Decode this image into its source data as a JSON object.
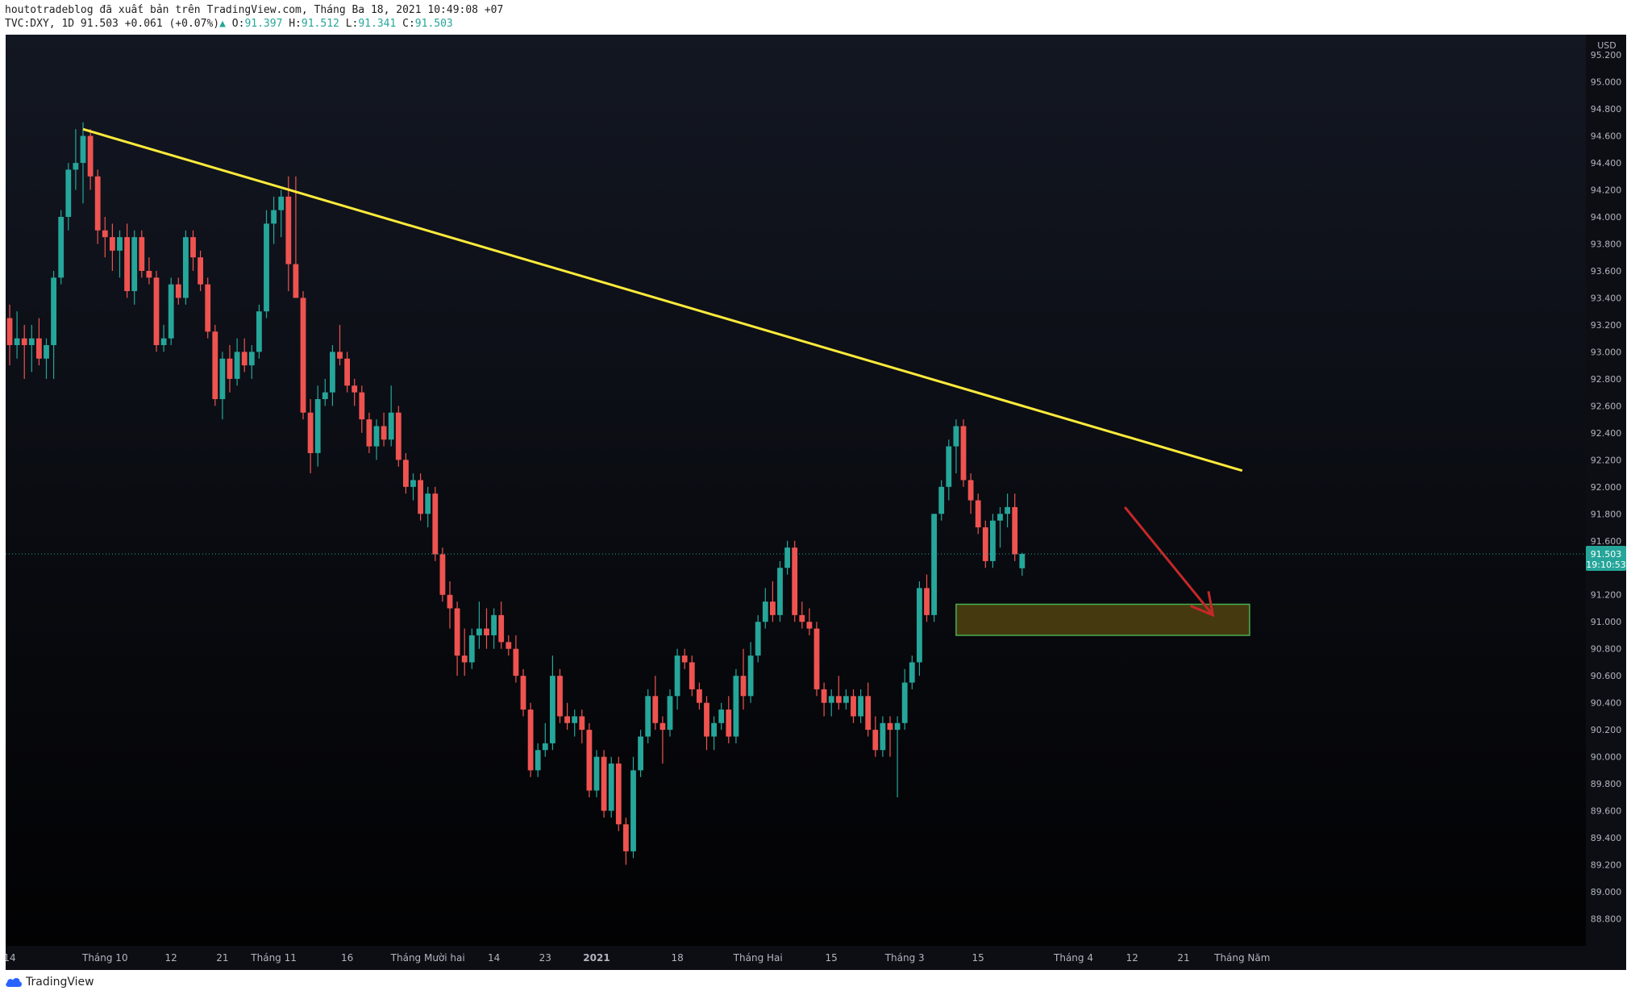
{
  "header": {
    "publisher_line": "houtotradeblog đã xuất bản trên TradingView.com, Tháng Ba 18, 2021 10:49:08 +07",
    "symbol": "TVC:DXY, 1D",
    "last": "91.503",
    "arrow": "▲",
    "change": "+0.061 (+0.07%)",
    "o_label": "O:",
    "o": "91.397",
    "h_label": "H:",
    "h": "91.512",
    "l_label": "L:",
    "l": "91.341",
    "c_label": "C:",
    "c": "91.503"
  },
  "footer": {
    "brand": "TradingView"
  },
  "colors": {
    "bg_top": "#131722",
    "bg_bottom": "#000000",
    "up": "#26a69a",
    "down": "#ef5350",
    "trendline": "#ffeb3b",
    "zone_stroke": "#4caf50",
    "zone_fill": "#5a4a12",
    "arrow": "#c62828",
    "axis_text": "#b2b5be"
  },
  "chart_data": {
    "type": "candlestick",
    "currency": "USD",
    "ylim": [
      88.6,
      95.35
    ],
    "yticks": [
      "95.200",
      "95.000",
      "94.800",
      "94.600",
      "94.400",
      "94.200",
      "94.000",
      "93.800",
      "93.600",
      "93.400",
      "93.200",
      "93.000",
      "92.800",
      "92.600",
      "92.400",
      "92.200",
      "92.000",
      "91.800",
      "91.600",
      "91.200",
      "91.000",
      "90.800",
      "90.600",
      "90.400",
      "90.200",
      "90.000",
      "89.800",
      "89.600",
      "89.400",
      "89.200",
      "89.000",
      "88.800"
    ],
    "price_label": "91.503",
    "countdown": "19:10:53",
    "xticks": [
      {
        "label": "14",
        "i": 0
      },
      {
        "label": "Tháng 10",
        "i": 13
      },
      {
        "label": "12",
        "i": 22
      },
      {
        "label": "21",
        "i": 29
      },
      {
        "label": "Tháng 11",
        "i": 36
      },
      {
        "label": "16",
        "i": 46
      },
      {
        "label": "Tháng Mười hai",
        "i": 57
      },
      {
        "label": "14",
        "i": 66
      },
      {
        "label": "23",
        "i": 73
      },
      {
        "label": "2021",
        "i": 80
      },
      {
        "label": "18",
        "i": 91
      },
      {
        "label": "Tháng Hai",
        "i": 102
      },
      {
        "label": "15",
        "i": 112
      },
      {
        "label": "Tháng 3",
        "i": 122
      },
      {
        "label": "15",
        "i": 132
      },
      {
        "label": "Tháng 4",
        "i": 145
      },
      {
        "label": "12",
        "i": 153
      },
      {
        "label": "21",
        "i": 160
      },
      {
        "label": "Tháng Năm",
        "i": 168
      }
    ],
    "candles": [
      [
        93.25,
        93.35,
        92.9,
        93.05
      ],
      [
        93.05,
        93.3,
        92.95,
        93.1
      ],
      [
        93.1,
        93.2,
        92.8,
        93.05
      ],
      [
        93.05,
        93.2,
        92.85,
        93.1
      ],
      [
        93.1,
        93.25,
        92.9,
        92.95
      ],
      [
        92.95,
        93.1,
        92.8,
        93.05
      ],
      [
        93.05,
        93.6,
        92.8,
        93.55
      ],
      [
        93.55,
        94.05,
        93.5,
        94.0
      ],
      [
        94.0,
        94.4,
        93.9,
        94.35
      ],
      [
        94.35,
        94.65,
        94.2,
        94.4
      ],
      [
        94.4,
        94.7,
        94.1,
        94.6
      ],
      [
        94.6,
        94.65,
        94.2,
        94.3
      ],
      [
        94.3,
        94.35,
        93.8,
        93.9
      ],
      [
        93.9,
        94.0,
        93.7,
        93.85
      ],
      [
        93.85,
        93.95,
        93.6,
        93.75
      ],
      [
        93.75,
        93.9,
        93.55,
        93.85
      ],
      [
        93.85,
        93.95,
        93.4,
        93.45
      ],
      [
        93.45,
        93.9,
        93.35,
        93.85
      ],
      [
        93.85,
        93.9,
        93.55,
        93.6
      ],
      [
        93.6,
        93.7,
        93.5,
        93.55
      ],
      [
        93.55,
        93.6,
        93.0,
        93.05
      ],
      [
        93.05,
        93.2,
        93.0,
        93.1
      ],
      [
        93.1,
        93.55,
        93.05,
        93.5
      ],
      [
        93.5,
        93.55,
        93.35,
        93.4
      ],
      [
        93.4,
        93.9,
        93.35,
        93.85
      ],
      [
        93.85,
        93.9,
        93.6,
        93.7
      ],
      [
        93.7,
        93.75,
        93.45,
        93.5
      ],
      [
        93.5,
        93.55,
        93.1,
        93.15
      ],
      [
        93.15,
        93.2,
        92.6,
        92.65
      ],
      [
        92.65,
        93.0,
        92.5,
        92.95
      ],
      [
        92.95,
        93.05,
        92.7,
        92.8
      ],
      [
        92.8,
        93.1,
        92.75,
        93.0
      ],
      [
        93.0,
        93.1,
        92.85,
        92.9
      ],
      [
        92.9,
        93.05,
        92.8,
        93.0
      ],
      [
        93.0,
        93.35,
        92.95,
        93.3
      ],
      [
        93.3,
        94.05,
        93.25,
        93.95
      ],
      [
        93.95,
        94.15,
        93.8,
        94.05
      ],
      [
        94.05,
        94.2,
        93.85,
        94.15
      ],
      [
        94.15,
        94.3,
        93.45,
        93.65
      ],
      [
        93.65,
        94.3,
        93.4,
        93.4
      ],
      [
        93.4,
        93.45,
        92.5,
        92.55
      ],
      [
        92.55,
        92.65,
        92.1,
        92.25
      ],
      [
        92.25,
        92.75,
        92.15,
        92.65
      ],
      [
        92.65,
        92.8,
        92.6,
        92.7
      ],
      [
        92.7,
        93.05,
        92.6,
        93.0
      ],
      [
        93.0,
        93.2,
        92.9,
        92.95
      ],
      [
        92.95,
        93.0,
        92.7,
        92.75
      ],
      [
        92.75,
        92.8,
        92.6,
        92.7
      ],
      [
        92.7,
        92.75,
        92.4,
        92.5
      ],
      [
        92.5,
        92.55,
        92.25,
        92.3
      ],
      [
        92.3,
        92.5,
        92.2,
        92.45
      ],
      [
        92.45,
        92.55,
        92.3,
        92.35
      ],
      [
        92.35,
        92.75,
        92.3,
        92.55
      ],
      [
        92.55,
        92.6,
        92.15,
        92.2
      ],
      [
        92.2,
        92.25,
        91.95,
        92.0
      ],
      [
        92.0,
        92.1,
        91.9,
        92.05
      ],
      [
        92.05,
        92.1,
        91.75,
        91.8
      ],
      [
        91.8,
        92.0,
        91.7,
        91.95
      ],
      [
        91.95,
        92.0,
        91.45,
        91.5
      ],
      [
        91.5,
        91.55,
        91.15,
        91.2
      ],
      [
        91.2,
        91.3,
        90.95,
        91.1
      ],
      [
        91.1,
        91.15,
        90.6,
        90.75
      ],
      [
        90.75,
        90.95,
        90.6,
        90.7
      ],
      [
        90.7,
        90.95,
        90.65,
        90.9
      ],
      [
        90.9,
        91.15,
        90.8,
        90.95
      ],
      [
        90.95,
        91.1,
        90.8,
        90.9
      ],
      [
        90.9,
        91.1,
        90.8,
        91.05
      ],
      [
        91.05,
        91.15,
        90.8,
        90.85
      ],
      [
        90.85,
        90.9,
        90.75,
        90.8
      ],
      [
        90.8,
        90.9,
        90.55,
        90.6
      ],
      [
        90.6,
        90.65,
        90.3,
        90.35
      ],
      [
        90.35,
        90.4,
        89.85,
        89.9
      ],
      [
        89.9,
        90.1,
        89.85,
        90.05
      ],
      [
        90.05,
        90.25,
        90.0,
        90.1
      ],
      [
        90.1,
        90.75,
        90.05,
        90.6
      ],
      [
        90.6,
        90.65,
        90.25,
        90.3
      ],
      [
        90.3,
        90.4,
        90.2,
        90.25
      ],
      [
        90.25,
        90.35,
        90.15,
        90.3
      ],
      [
        90.3,
        90.35,
        90.1,
        90.2
      ],
      [
        90.2,
        90.25,
        89.7,
        89.75
      ],
      [
        89.75,
        90.05,
        89.7,
        90.0
      ],
      [
        90.0,
        90.05,
        89.55,
        89.6
      ],
      [
        89.6,
        90.0,
        89.55,
        89.95
      ],
      [
        89.95,
        90.0,
        89.45,
        89.5
      ],
      [
        89.5,
        89.55,
        89.2,
        89.3
      ],
      [
        89.3,
        90.0,
        89.25,
        89.9
      ],
      [
        89.9,
        90.2,
        89.85,
        90.15
      ],
      [
        90.15,
        90.5,
        90.1,
        90.45
      ],
      [
        90.45,
        90.6,
        90.2,
        90.25
      ],
      [
        90.25,
        90.3,
        89.95,
        90.2
      ],
      [
        90.2,
        90.5,
        90.15,
        90.45
      ],
      [
        90.45,
        90.8,
        90.35,
        90.75
      ],
      [
        90.75,
        90.8,
        90.65,
        90.7
      ],
      [
        90.7,
        90.75,
        90.45,
        90.5
      ],
      [
        90.5,
        90.55,
        90.35,
        90.4
      ],
      [
        90.4,
        90.45,
        90.05,
        90.15
      ],
      [
        90.15,
        90.3,
        90.05,
        90.25
      ],
      [
        90.25,
        90.4,
        90.2,
        90.35
      ],
      [
        90.35,
        90.45,
        90.1,
        90.15
      ],
      [
        90.15,
        90.65,
        90.1,
        90.6
      ],
      [
        90.6,
        90.8,
        90.35,
        90.45
      ],
      [
        90.45,
        90.85,
        90.4,
        90.75
      ],
      [
        90.75,
        91.05,
        90.7,
        91.0
      ],
      [
        91.0,
        91.25,
        90.95,
        91.15
      ],
      [
        91.15,
        91.3,
        91.0,
        91.05
      ],
      [
        91.05,
        91.45,
        91.0,
        91.4
      ],
      [
        91.4,
        91.6,
        91.35,
        91.55
      ],
      [
        91.55,
        91.6,
        91.0,
        91.05
      ],
      [
        91.05,
        91.15,
        90.95,
        91.0
      ],
      [
        91.0,
        91.1,
        90.9,
        90.95
      ],
      [
        90.95,
        91.0,
        90.45,
        90.5
      ],
      [
        90.5,
        90.55,
        90.3,
        90.4
      ],
      [
        90.4,
        90.5,
        90.3,
        90.45
      ],
      [
        90.45,
        90.6,
        90.35,
        90.4
      ],
      [
        90.4,
        90.5,
        90.35,
        90.45
      ],
      [
        90.45,
        90.5,
        90.25,
        90.3
      ],
      [
        90.3,
        90.5,
        90.25,
        90.45
      ],
      [
        90.45,
        90.55,
        90.15,
        90.2
      ],
      [
        90.2,
        90.3,
        90.0,
        90.05
      ],
      [
        90.05,
        90.3,
        90.0,
        90.25
      ],
      [
        90.25,
        90.3,
        90.0,
        90.2
      ],
      [
        90.2,
        90.3,
        89.7,
        90.25
      ],
      [
        90.25,
        90.65,
        90.2,
        90.55
      ],
      [
        90.55,
        90.75,
        90.5,
        90.7
      ],
      [
        90.7,
        91.3,
        90.6,
        91.25
      ],
      [
        91.25,
        91.35,
        91.0,
        91.05
      ],
      [
        91.05,
        91.8,
        91.0,
        91.8
      ],
      [
        91.8,
        92.05,
        91.75,
        92.0
      ],
      [
        92.0,
        92.35,
        91.9,
        92.3
      ],
      [
        92.3,
        92.5,
        92.1,
        92.45
      ],
      [
        92.45,
        92.5,
        92.0,
        92.05
      ],
      [
        92.05,
        92.1,
        91.8,
        91.9
      ],
      [
        91.9,
        91.95,
        91.65,
        91.7
      ],
      [
        91.7,
        91.75,
        91.4,
        91.45
      ],
      [
        91.45,
        91.8,
        91.4,
        91.75
      ],
      [
        91.75,
        91.85,
        91.55,
        91.8
      ],
      [
        91.8,
        91.95,
        91.7,
        91.85
      ],
      [
        91.85,
        91.95,
        91.45,
        91.5
      ],
      [
        91.397,
        91.512,
        91.341,
        91.503
      ]
    ],
    "trendline": [
      [
        10,
        94.65
      ],
      [
        168,
        92.12
      ]
    ],
    "zone": [
      129,
      169,
      90.9,
      91.13
    ],
    "arrow_line": [
      [
        152,
        91.85
      ],
      [
        164,
        91.05
      ]
    ]
  }
}
